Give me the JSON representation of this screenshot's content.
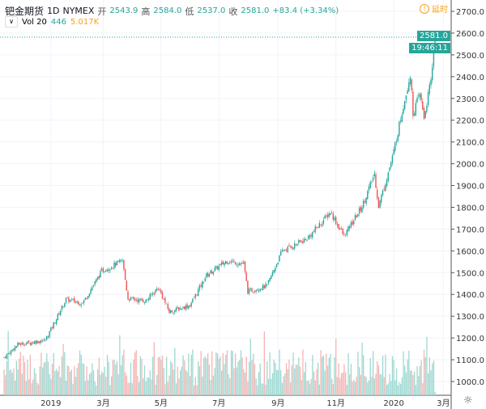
{
  "header": {
    "symbol": "钯金期货",
    "interval": "1D",
    "exchange": "NYMEX",
    "open_label": "开",
    "open": "2543.9",
    "high_label": "高",
    "high": "2584.0",
    "low_label": "低",
    "low": "2537.0",
    "close_label": "收",
    "close": "2581.0",
    "change": "+83.4 (+3.34%)"
  },
  "volume": {
    "label": "Vol 20",
    "value": "446",
    "ma": "5.017K"
  },
  "delay_label": "延时",
  "price_tag": "2581.0",
  "time_tag": "19:46:11",
  "colors": {
    "up": "#26a69a",
    "down": "#ef5350",
    "vol_up": "#9fd8d1",
    "vol_down": "#f5b5b3"
  },
  "chart_data": {
    "type": "candlestick",
    "yticks": [
      "2700.0",
      "2600.0",
      "2500.0",
      "2400.0",
      "2300.0",
      "2200.0",
      "2100.0",
      "2000.0",
      "1900.0",
      "1800.0",
      "1700.0",
      "1600.0",
      "1500.0",
      "1400.0",
      "1300.0",
      "1200.0",
      "1100.0",
      "1000.0"
    ],
    "ylim": [
      1000,
      2700
    ],
    "xticks": [
      {
        "label": "2019",
        "day": 34
      },
      {
        "label": "3月",
        "day": 72
      },
      {
        "label": "5月",
        "day": 114
      },
      {
        "label": "7月",
        "day": 156
      },
      {
        "label": "9月",
        "day": 199
      },
      {
        "label": "11月",
        "day": 241
      },
      {
        "label": "2020",
        "day": 283
      },
      {
        "label": "3月",
        "day": 319
      }
    ],
    "days": 322,
    "close_waypoints": [
      [
        0,
        1110
      ],
      [
        10,
        1170
      ],
      [
        30,
        1190
      ],
      [
        45,
        1377
      ],
      [
        57,
        1360
      ],
      [
        71,
        1507
      ],
      [
        86,
        1555
      ],
      [
        90,
        1380
      ],
      [
        103,
        1370
      ],
      [
        112,
        1432
      ],
      [
        120,
        1320
      ],
      [
        135,
        1350
      ],
      [
        147,
        1488
      ],
      [
        162,
        1555
      ],
      [
        174,
        1540
      ],
      [
        177,
        1413
      ],
      [
        191,
        1440
      ],
      [
        202,
        1600
      ],
      [
        220,
        1655
      ],
      [
        237,
        1778
      ],
      [
        247,
        1667
      ],
      [
        260,
        1805
      ],
      [
        269,
        1952
      ],
      [
        272,
        1805
      ],
      [
        282,
        2027
      ],
      [
        290,
        2269
      ],
      [
        295,
        2410
      ],
      [
        297,
        2231
      ],
      [
        302,
        2320
      ],
      [
        305,
        2213
      ],
      [
        310,
        2380
      ],
      [
        313,
        2581
      ]
    ],
    "last_volume": 446
  }
}
